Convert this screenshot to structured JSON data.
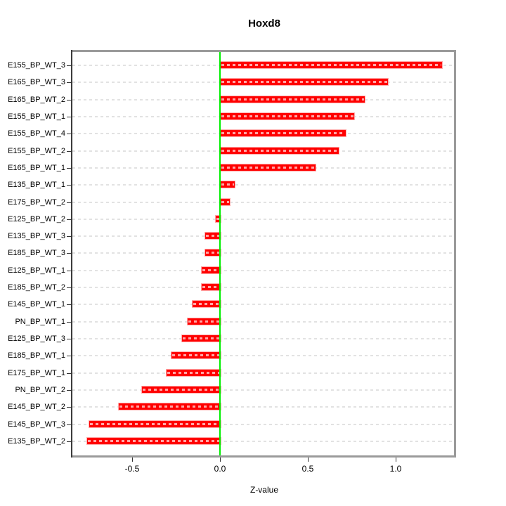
{
  "title": "Hoxd8",
  "xlabel": "Z-value",
  "chart_data": {
    "type": "bar",
    "orientation": "horizontal",
    "title": "Hoxd8",
    "xlabel": "Z-value",
    "ylabel": "",
    "categories": [
      "E155_BP_WT_3",
      "E165_BP_WT_3",
      "E165_BP_WT_2",
      "E155_BP_WT_1",
      "E155_BP_WT_4",
      "E155_BP_WT_2",
      "E165_BP_WT_1",
      "E135_BP_WT_1",
      "E175_BP_WT_2",
      "E125_BP_WT_2",
      "E135_BP_WT_3",
      "E185_BP_WT_3",
      "E125_BP_WT_1",
      "E185_BP_WT_2",
      "E145_BP_WT_1",
      "PN_BP_WT_1",
      "E125_BP_WT_3",
      "E185_BP_WT_1",
      "E175_BP_WT_1",
      "PN_BP_WT_2",
      "E145_BP_WT_2",
      "E145_BP_WT_3",
      "E135_BP_WT_2"
    ],
    "values": [
      1.26,
      0.95,
      0.82,
      0.76,
      0.71,
      0.67,
      0.54,
      0.08,
      0.05,
      -0.03,
      -0.09,
      -0.09,
      -0.11,
      -0.11,
      -0.16,
      -0.19,
      -0.22,
      -0.28,
      -0.31,
      -0.45,
      -0.58,
      -0.75,
      -0.76
    ],
    "xlim": [
      -0.84,
      1.34
    ],
    "x_tick_values": [
      -0.5,
      0.0,
      0.5,
      1.0
    ],
    "x_tick_labels": [
      "-0.5",
      "0.0",
      "0.5",
      "1.0"
    ],
    "zero_line": true,
    "grid": "horizontal-dashed-per-category",
    "legend": "none",
    "colors": {
      "bar": "#ff0000",
      "bar_border": "#ffa8a8",
      "zero_line": "#00ef00",
      "grid": "#e2e2e2",
      "box": "#9a9a9a",
      "axis": "#333333"
    }
  }
}
